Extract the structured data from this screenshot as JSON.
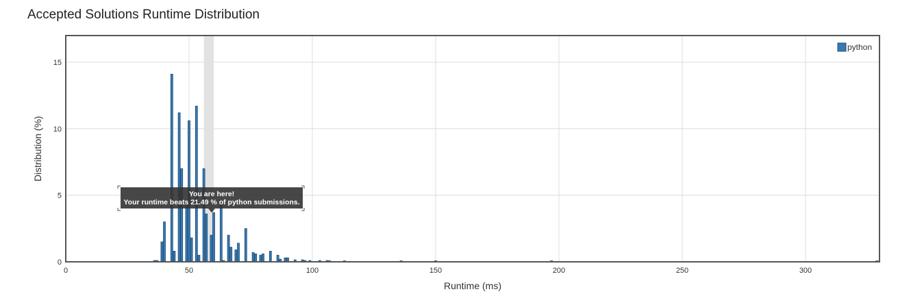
{
  "page": {
    "title": "Accepted Solutions Runtime Distribution"
  },
  "colors": {
    "bar_fill": "#3a78b0",
    "bar_stroke": "#1f4e79",
    "grid": "#dcdcdc",
    "frame": "#555555",
    "highlight": "#e2e2e2",
    "tooltip_bg": "#333333"
  },
  "chart_data": {
    "type": "bar",
    "title": "Accepted Solutions Runtime Distribution",
    "xlabel": "Runtime (ms)",
    "ylabel": "Distribution (%)",
    "xlim": [
      0,
      330
    ],
    "ylim": [
      0,
      17
    ],
    "x_ticks": [
      0,
      50,
      100,
      150,
      200,
      250,
      300
    ],
    "y_ticks": [
      0,
      5,
      10,
      15
    ],
    "grid": true,
    "legend_position": "top-right",
    "bar_width": 1,
    "series": [
      {
        "name": "python",
        "points": [
          {
            "x": 36,
            "y": 0.1
          },
          {
            "x": 37,
            "y": 0.1
          },
          {
            "x": 39,
            "y": 1.5
          },
          {
            "x": 40,
            "y": 3.0
          },
          {
            "x": 43,
            "y": 14.1
          },
          {
            "x": 44,
            "y": 0.8
          },
          {
            "x": 46,
            "y": 11.2
          },
          {
            "x": 47,
            "y": 7.0
          },
          {
            "x": 49,
            "y": 4.5
          },
          {
            "x": 50,
            "y": 10.6
          },
          {
            "x": 51,
            "y": 1.8
          },
          {
            "x": 53,
            "y": 11.7
          },
          {
            "x": 54,
            "y": 0.5
          },
          {
            "x": 56,
            "y": 7.0
          },
          {
            "x": 57,
            "y": 3.6
          },
          {
            "x": 59,
            "y": 2.0
          },
          {
            "x": 60,
            "y": 3.7
          },
          {
            "x": 63,
            "y": 4.3
          },
          {
            "x": 64,
            "y": 0.1
          },
          {
            "x": 66,
            "y": 2.0
          },
          {
            "x": 67,
            "y": 1.1
          },
          {
            "x": 69,
            "y": 0.9
          },
          {
            "x": 70,
            "y": 1.4
          },
          {
            "x": 73,
            "y": 2.5
          },
          {
            "x": 76,
            "y": 0.7
          },
          {
            "x": 77,
            "y": 0.6
          },
          {
            "x": 79,
            "y": 0.5
          },
          {
            "x": 80,
            "y": 0.6
          },
          {
            "x": 83,
            "y": 0.8
          },
          {
            "x": 86,
            "y": 0.5
          },
          {
            "x": 87,
            "y": 0.2
          },
          {
            "x": 89,
            "y": 0.3
          },
          {
            "x": 90,
            "y": 0.3
          },
          {
            "x": 93,
            "y": 0.15
          },
          {
            "x": 96,
            "y": 0.15
          },
          {
            "x": 97,
            "y": 0.1
          },
          {
            "x": 99,
            "y": 0.1
          },
          {
            "x": 103,
            "y": 0.1
          },
          {
            "x": 106,
            "y": 0.1
          },
          {
            "x": 107,
            "y": 0.05
          },
          {
            "x": 113,
            "y": 0.05
          },
          {
            "x": 136,
            "y": 0.05
          },
          {
            "x": 150,
            "y": 0.05
          },
          {
            "x": 197,
            "y": 0.05
          },
          {
            "x": 329,
            "y": 0.05
          }
        ]
      }
    ],
    "highlight": {
      "x": 58,
      "width": 4
    },
    "tooltip": {
      "line1": "You are here!",
      "line2": "Your runtime beats 21.49 % of python submissions."
    }
  }
}
